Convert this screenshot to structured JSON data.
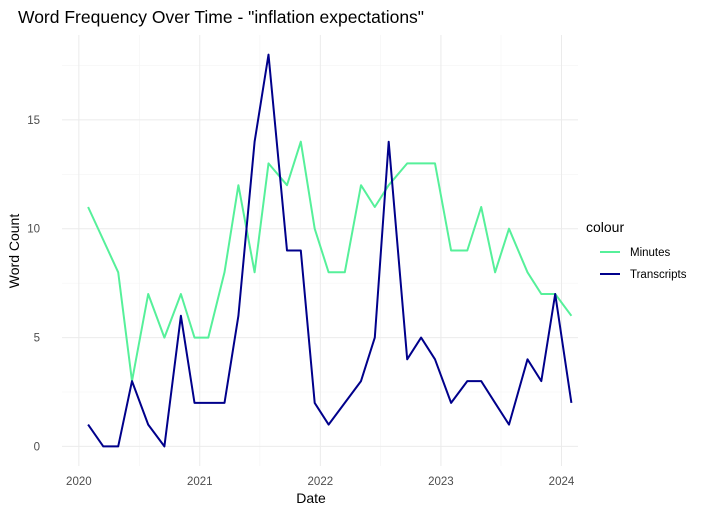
{
  "chart_data": {
    "type": "line",
    "title": "Word Frequency Over Time - \"inflation expectations\"",
    "xlabel": "Date",
    "ylabel": "Word Count",
    "x_ticks": [
      "2020",
      "2021",
      "2022",
      "2023",
      "2024"
    ],
    "y_ticks": [
      "0",
      "5",
      "10",
      "15"
    ],
    "xlim": [
      "2019-11-11",
      "2024-02-20"
    ],
    "ylim": [
      -0.9,
      18.9
    ],
    "grid": true,
    "legend": {
      "title": "colour",
      "placement": "right"
    },
    "series": [
      {
        "name": "Minutes",
        "color": "#56f09a",
        "points": [
          {
            "x": "2020-01-29",
            "y": 11
          },
          {
            "x": "2020-04-29",
            "y": 8
          },
          {
            "x": "2020-06-10",
            "y": 3
          },
          {
            "x": "2020-07-29",
            "y": 7
          },
          {
            "x": "2020-09-16",
            "y": 5
          },
          {
            "x": "2020-11-05",
            "y": 7
          },
          {
            "x": "2020-12-16",
            "y": 5
          },
          {
            "x": "2021-01-27",
            "y": 5
          },
          {
            "x": "2021-03-17",
            "y": 8
          },
          {
            "x": "2021-04-28",
            "y": 12
          },
          {
            "x": "2021-06-16",
            "y": 8
          },
          {
            "x": "2021-07-28",
            "y": 13
          },
          {
            "x": "2021-09-22",
            "y": 12
          },
          {
            "x": "2021-11-03",
            "y": 14
          },
          {
            "x": "2021-12-15",
            "y": 10
          },
          {
            "x": "2022-01-26",
            "y": 8
          },
          {
            "x": "2022-03-16",
            "y": 8
          },
          {
            "x": "2022-05-04",
            "y": 12
          },
          {
            "x": "2022-06-15",
            "y": 11
          },
          {
            "x": "2022-07-27",
            "y": 12
          },
          {
            "x": "2022-09-21",
            "y": 13
          },
          {
            "x": "2022-11-02",
            "y": 13
          },
          {
            "x": "2022-12-14",
            "y": 13
          },
          {
            "x": "2023-02-01",
            "y": 9
          },
          {
            "x": "2023-03-22",
            "y": 9
          },
          {
            "x": "2023-05-03",
            "y": 11
          },
          {
            "x": "2023-06-14",
            "y": 8
          },
          {
            "x": "2023-07-26",
            "y": 10
          },
          {
            "x": "2023-09-20",
            "y": 8
          },
          {
            "x": "2023-11-01",
            "y": 7
          },
          {
            "x": "2023-12-13",
            "y": 7
          },
          {
            "x": "2024-01-31",
            "y": 6
          }
        ]
      },
      {
        "name": "Transcripts",
        "color": "#00008b",
        "points": [
          {
            "x": "2020-01-29",
            "y": 1
          },
          {
            "x": "2020-03-15",
            "y": 0
          },
          {
            "x": "2020-04-29",
            "y": 0
          },
          {
            "x": "2020-06-10",
            "y": 3
          },
          {
            "x": "2020-07-29",
            "y": 1
          },
          {
            "x": "2020-09-16",
            "y": 0
          },
          {
            "x": "2020-11-05",
            "y": 6
          },
          {
            "x": "2020-12-16",
            "y": 2
          },
          {
            "x": "2021-01-27",
            "y": 2
          },
          {
            "x": "2021-03-17",
            "y": 2
          },
          {
            "x": "2021-04-28",
            "y": 6
          },
          {
            "x": "2021-06-16",
            "y": 14
          },
          {
            "x": "2021-07-28",
            "y": 18
          },
          {
            "x": "2021-09-22",
            "y": 9
          },
          {
            "x": "2021-11-03",
            "y": 9
          },
          {
            "x": "2021-12-15",
            "y": 2
          },
          {
            "x": "2022-01-26",
            "y": 1
          },
          {
            "x": "2022-03-16",
            "y": 2
          },
          {
            "x": "2022-05-04",
            "y": 3
          },
          {
            "x": "2022-06-15",
            "y": 5
          },
          {
            "x": "2022-07-27",
            "y": 14
          },
          {
            "x": "2022-09-21",
            "y": 4
          },
          {
            "x": "2022-11-02",
            "y": 5
          },
          {
            "x": "2022-12-14",
            "y": 4
          },
          {
            "x": "2023-02-01",
            "y": 2
          },
          {
            "x": "2023-03-22",
            "y": 3
          },
          {
            "x": "2023-05-03",
            "y": 3
          },
          {
            "x": "2023-06-14",
            "y": 2
          },
          {
            "x": "2023-07-26",
            "y": 1
          },
          {
            "x": "2023-09-20",
            "y": 4
          },
          {
            "x": "2023-11-01",
            "y": 3
          },
          {
            "x": "2023-12-13",
            "y": 7
          },
          {
            "x": "2024-01-31",
            "y": 2
          }
        ]
      }
    ]
  }
}
